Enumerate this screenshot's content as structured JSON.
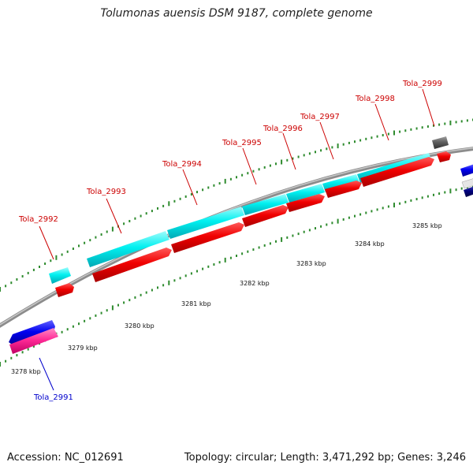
{
  "title": "Tolumonas auensis DSM 9187, complete genome",
  "footer": {
    "accession": "Accession: NC_012691",
    "summary": "Topology: circular; Length: 3,471,292 bp; Genes: 3,246"
  },
  "colors": {
    "forward_cds": "#ff0000",
    "forward_gene": "#00ffff",
    "reverse_cds": "#ff3399",
    "reverse_gene": "#0000ff",
    "pseudo": "#666666",
    "backbone": "#909090",
    "ticks": "#2e8b2e",
    "label_forward": "#cc0000",
    "label_reverse": "#0000cc"
  },
  "scale_labels": [
    "3278 kbp",
    "3279 kbp",
    "3280 kbp",
    "3281 kbp",
    "3282 kbp",
    "3283 kbp",
    "3284 kbp",
    "3285 kbp"
  ],
  "gene_labels": [
    {
      "name": "Tola_2991",
      "strand": "reverse"
    },
    {
      "name": "Tola_2992",
      "strand": "forward"
    },
    {
      "name": "Tola_2993",
      "strand": "forward"
    },
    {
      "name": "Tola_2994",
      "strand": "forward"
    },
    {
      "name": "Tola_2995",
      "strand": "forward"
    },
    {
      "name": "Tola_2996",
      "strand": "forward"
    },
    {
      "name": "Tola_2997",
      "strand": "forward"
    },
    {
      "name": "Tola_2998",
      "strand": "forward"
    },
    {
      "name": "Tola_2999",
      "strand": "forward"
    }
  ]
}
